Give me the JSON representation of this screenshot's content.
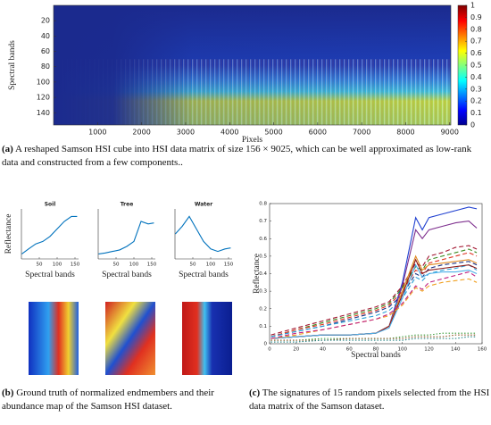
{
  "chart_data": [
    {
      "type": "heatmap",
      "xlabel": "Pixels",
      "ylabel": "Spectral bands",
      "xlim": [
        0,
        9025
      ],
      "xticks": [
        1000,
        2000,
        3000,
        4000,
        5000,
        6000,
        7000,
        8000,
        9000
      ],
      "ylim": [
        0,
        156
      ],
      "y_reversed": true,
      "yticks": [
        20,
        40,
        60,
        80,
        100,
        120,
        140
      ],
      "clim": [
        0,
        1
      ],
      "cticks": [
        0,
        0.1,
        0.2,
        0.3,
        0.4,
        0.5,
        0.6,
        0.7,
        0.8,
        0.9,
        1
      ]
    },
    {
      "type": "line",
      "title": "Soil",
      "xlabel": "Spectral bands",
      "ylabel": "Reflectance",
      "color": "#0072bd",
      "x": [
        1,
        20,
        40,
        60,
        80,
        100,
        120,
        140,
        156
      ],
      "values": [
        0.1,
        0.2,
        0.3,
        0.35,
        0.45,
        0.6,
        0.75,
        0.85,
        0.85
      ],
      "xlim": [
        0,
        160
      ],
      "xticks": [
        50,
        100,
        150
      ],
      "ylim": [
        0,
        1
      ]
    },
    {
      "type": "line",
      "title": "Tree",
      "xlabel": "Spectral bands",
      "color": "#0072bd",
      "x": [
        1,
        20,
        40,
        60,
        80,
        100,
        120,
        140,
        156
      ],
      "values": [
        0.1,
        0.12,
        0.15,
        0.18,
        0.25,
        0.35,
        0.75,
        0.7,
        0.72
      ],
      "xlim": [
        0,
        160
      ],
      "xticks": [
        50,
        100,
        150
      ],
      "ylim": [
        0,
        1
      ]
    },
    {
      "type": "line",
      "title": "Water",
      "xlabel": "Spectral bands",
      "color": "#0072bd",
      "x": [
        1,
        20,
        40,
        60,
        80,
        100,
        120,
        140,
        156
      ],
      "values": [
        0.5,
        0.65,
        0.85,
        0.6,
        0.35,
        0.2,
        0.15,
        0.2,
        0.22
      ],
      "xlim": [
        0,
        160
      ],
      "xticks": [
        50,
        100,
        150
      ],
      "ylim": [
        0,
        1
      ]
    },
    {
      "type": "line",
      "xlabel": "Spectral bands",
      "ylabel": "Reflectance",
      "x": [
        1,
        20,
        40,
        60,
        80,
        90,
        100,
        110,
        115,
        120,
        130,
        140,
        150,
        156
      ],
      "xlim": [
        0,
        160
      ],
      "xticks": [
        0,
        20,
        40,
        60,
        80,
        100,
        120,
        140,
        160
      ],
      "ylim": [
        0,
        0.8
      ],
      "yticks": [
        0,
        0.1,
        0.2,
        0.3,
        0.4,
        0.5,
        0.6,
        0.7,
        0.8
      ],
      "series": [
        {
          "color": "#2040d0",
          "style": "solid",
          "values": [
            0.03,
            0.04,
            0.05,
            0.05,
            0.06,
            0.1,
            0.35,
            0.72,
            0.65,
            0.72,
            0.74,
            0.76,
            0.78,
            0.77
          ]
        },
        {
          "color": "#7e2f8e",
          "style": "solid",
          "values": [
            0.03,
            0.04,
            0.05,
            0.05,
            0.06,
            0.1,
            0.33,
            0.65,
            0.6,
            0.65,
            0.67,
            0.69,
            0.7,
            0.66
          ]
        },
        {
          "color": "#a2142f",
          "style": "dashed",
          "values": [
            0.05,
            0.09,
            0.13,
            0.17,
            0.21,
            0.24,
            0.33,
            0.46,
            0.44,
            0.5,
            0.52,
            0.55,
            0.56,
            0.54
          ]
        },
        {
          "color": "#3a8a20",
          "style": "dashed",
          "values": [
            0.04,
            0.08,
            0.12,
            0.16,
            0.2,
            0.23,
            0.32,
            0.44,
            0.42,
            0.48,
            0.5,
            0.52,
            0.54,
            0.52
          ]
        },
        {
          "color": "#e03020",
          "style": "dashed",
          "values": [
            0.04,
            0.08,
            0.11,
            0.15,
            0.19,
            0.22,
            0.3,
            0.42,
            0.4,
            0.46,
            0.48,
            0.5,
            0.52,
            0.5
          ]
        },
        {
          "color": "#1a3080",
          "style": "dashed",
          "values": [
            0.04,
            0.07,
            0.1,
            0.14,
            0.18,
            0.21,
            0.28,
            0.4,
            0.38,
            0.43,
            0.45,
            0.46,
            0.47,
            0.45
          ]
        },
        {
          "color": "#2aa0d8",
          "style": "dashed",
          "values": [
            0.04,
            0.07,
            0.1,
            0.13,
            0.16,
            0.19,
            0.26,
            0.38,
            0.36,
            0.4,
            0.42,
            0.43,
            0.45,
            0.42
          ]
        },
        {
          "color": "#e08a20",
          "style": "solid",
          "values": [
            0.03,
            0.04,
            0.05,
            0.05,
            0.06,
            0.1,
            0.3,
            0.5,
            0.42,
            0.45,
            0.46,
            0.47,
            0.48,
            0.46
          ]
        },
        {
          "color": "#8b1a1a",
          "style": "solid",
          "values": [
            0.03,
            0.04,
            0.05,
            0.05,
            0.06,
            0.1,
            0.28,
            0.48,
            0.4,
            0.42,
            0.43,
            0.44,
            0.45,
            0.43
          ]
        },
        {
          "color": "#4db0e8",
          "style": "solid",
          "values": [
            0.03,
            0.04,
            0.05,
            0.05,
            0.06,
            0.09,
            0.26,
            0.45,
            0.38,
            0.4,
            0.41,
            0.41,
            0.42,
            0.4
          ]
        },
        {
          "color": "#f0a020",
          "style": "dashed",
          "values": [
            0.03,
            0.05,
            0.08,
            0.11,
            0.14,
            0.16,
            0.22,
            0.32,
            0.3,
            0.33,
            0.35,
            0.36,
            0.37,
            0.35
          ]
        },
        {
          "color": "#c02080",
          "style": "dashed",
          "values": [
            0.03,
            0.06,
            0.08,
            0.11,
            0.14,
            0.17,
            0.23,
            0.33,
            0.31,
            0.35,
            0.37,
            0.39,
            0.41,
            0.38
          ]
        },
        {
          "color": "#40a040",
          "style": "dotted",
          "values": [
            0.02,
            0.02,
            0.03,
            0.03,
            0.03,
            0.03,
            0.04,
            0.05,
            0.05,
            0.05,
            0.06,
            0.06,
            0.06,
            0.06
          ]
        },
        {
          "color": "#8a5020",
          "style": "dotted",
          "values": [
            0.02,
            0.02,
            0.02,
            0.03,
            0.03,
            0.03,
            0.03,
            0.04,
            0.04,
            0.04,
            0.04,
            0.05,
            0.05,
            0.05
          ]
        },
        {
          "color": "#208080",
          "style": "dotted",
          "values": [
            0.01,
            0.01,
            0.02,
            0.02,
            0.02,
            0.02,
            0.02,
            0.03,
            0.03,
            0.03,
            0.03,
            0.03,
            0.04,
            0.04
          ]
        }
      ]
    }
  ],
  "captions": [
    {
      "label": "(a)",
      "text": "A reshaped Samson HSI cube into HSI data matrix of size 156 × 9025, which can be well approximated as low-rank data and constructed from a few components.."
    },
    {
      "label": "(b)",
      "text": "Ground truth of normalized endmembers and their abundance map of the Samson HSI dataset."
    },
    {
      "label": "(c)",
      "text": "The signatures of 15 random pixels selected from the HSI data matrix of the Samson dataset."
    }
  ]
}
